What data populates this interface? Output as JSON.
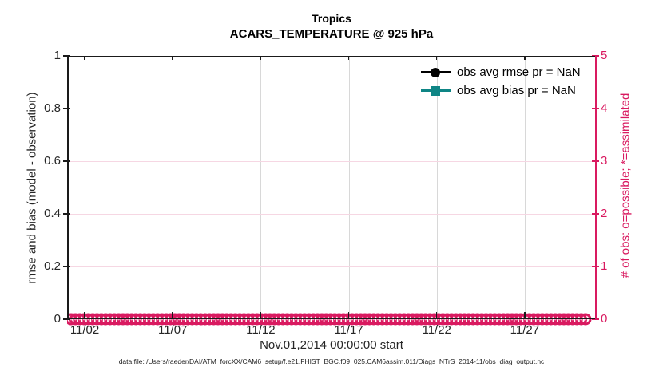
{
  "title": "Tropics",
  "subtitle": "ACARS_TEMPERATURE @ 925 hPa",
  "legend": [
    {
      "label": "obs avg rmse pr = NaN",
      "marker": "circle",
      "color": "#000000"
    },
    {
      "label": "obs avg bias pr = NaN",
      "marker": "square",
      "color": "#0e8585"
    }
  ],
  "footer": "data file: /Users/raeder/DAI/ATM_forcXX/CAM6_setup/f.e21.FHIST_BGC.f09_025.CAM6assim.011/Diags_NTrS_2014-11/obs_diag_output.nc",
  "chart_data": {
    "type": "line",
    "title": "Tropics",
    "subtitle": "ACARS_TEMPERATURE @ 925 hPa",
    "xlabel": "Nov.01,2014 00:00:00 start",
    "x_ticks": [
      "11/02",
      "11/07",
      "11/12",
      "11/17",
      "11/22",
      "11/27"
    ],
    "x_tick_days": [
      1,
      6,
      11,
      16,
      21,
      26
    ],
    "x_range_days": [
      0,
      30
    ],
    "left_axis": {
      "label": "rmse and bias (model - observation)",
      "ticks": [
        "0",
        "0.2",
        "0.4",
        "0.6",
        "0.8",
        "1"
      ],
      "range": [
        0,
        1
      ],
      "color": "#262626"
    },
    "right_axis": {
      "label": "# of obs: o=possible; *=assimilated",
      "ticks": [
        "0",
        "1",
        "2",
        "3",
        "4",
        "5"
      ],
      "range": [
        0,
        5
      ],
      "color": "#d91a60"
    },
    "grid": {
      "vertical_color": "#d8d8d8",
      "horizontal_color": "#f6d7e3"
    },
    "legend_position": "top-right-inside, no box",
    "series": [
      {
        "name": "obs avg rmse pr = NaN",
        "marker": "filled-circle",
        "color": "#000000",
        "values": "NaN"
      },
      {
        "name": "obs avg bias pr = NaN",
        "marker": "filled-square",
        "color": "#0e8585",
        "values": "NaN"
      },
      {
        "name": "# of obs possible (o markers)",
        "marker": "o",
        "color": "#d91a60",
        "y_value": 0,
        "marker_count": 120
      },
      {
        "name": "# of obs assimilated (* markers)",
        "marker": "*",
        "color": "#f2a3c3",
        "y_value": 0,
        "marker_count": 120
      }
    ]
  }
}
